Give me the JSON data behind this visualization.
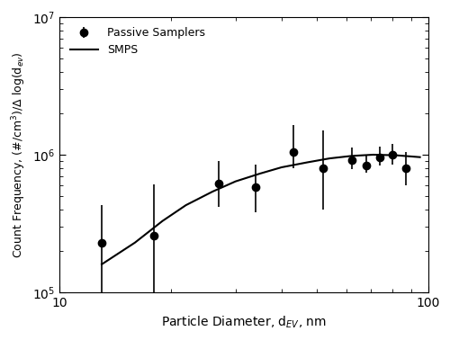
{
  "passive_x": [
    13,
    18,
    27,
    34,
    43,
    52,
    62,
    68,
    74,
    80,
    87
  ],
  "passive_y": [
    230000,
    260000,
    620000,
    580000,
    1050000,
    800000,
    920000,
    840000,
    950000,
    1000000,
    800000
  ],
  "passive_yerr_low": [
    130000,
    160000,
    200000,
    200000,
    250000,
    400000,
    130000,
    100000,
    120000,
    150000,
    200000
  ],
  "passive_yerr_high": [
    200000,
    350000,
    280000,
    270000,
    600000,
    700000,
    200000,
    150000,
    200000,
    200000,
    250000
  ],
  "smps_x": [
    13,
    16,
    19,
    22,
    26,
    30,
    35,
    40,
    47,
    54,
    62,
    71,
    82,
    95
  ],
  "smps_y": [
    160000,
    230000,
    330000,
    430000,
    540000,
    640000,
    730000,
    810000,
    880000,
    940000,
    980000,
    1000000,
    990000,
    960000
  ],
  "xlabel": "Particle Diameter, d$_{EV}$, nm",
  "ylabel": "Count Frequency, (#/cm$^3$)/Δ log(d$_{ev}$)",
  "xlim": [
    10,
    100
  ],
  "ylim": [
    100000.0,
    10000000.0
  ],
  "legend_passive": "Passive Samplers",
  "legend_smps": "SMPS",
  "line_color": "#000000",
  "marker_color": "#000000",
  "background_color": "#ffffff"
}
